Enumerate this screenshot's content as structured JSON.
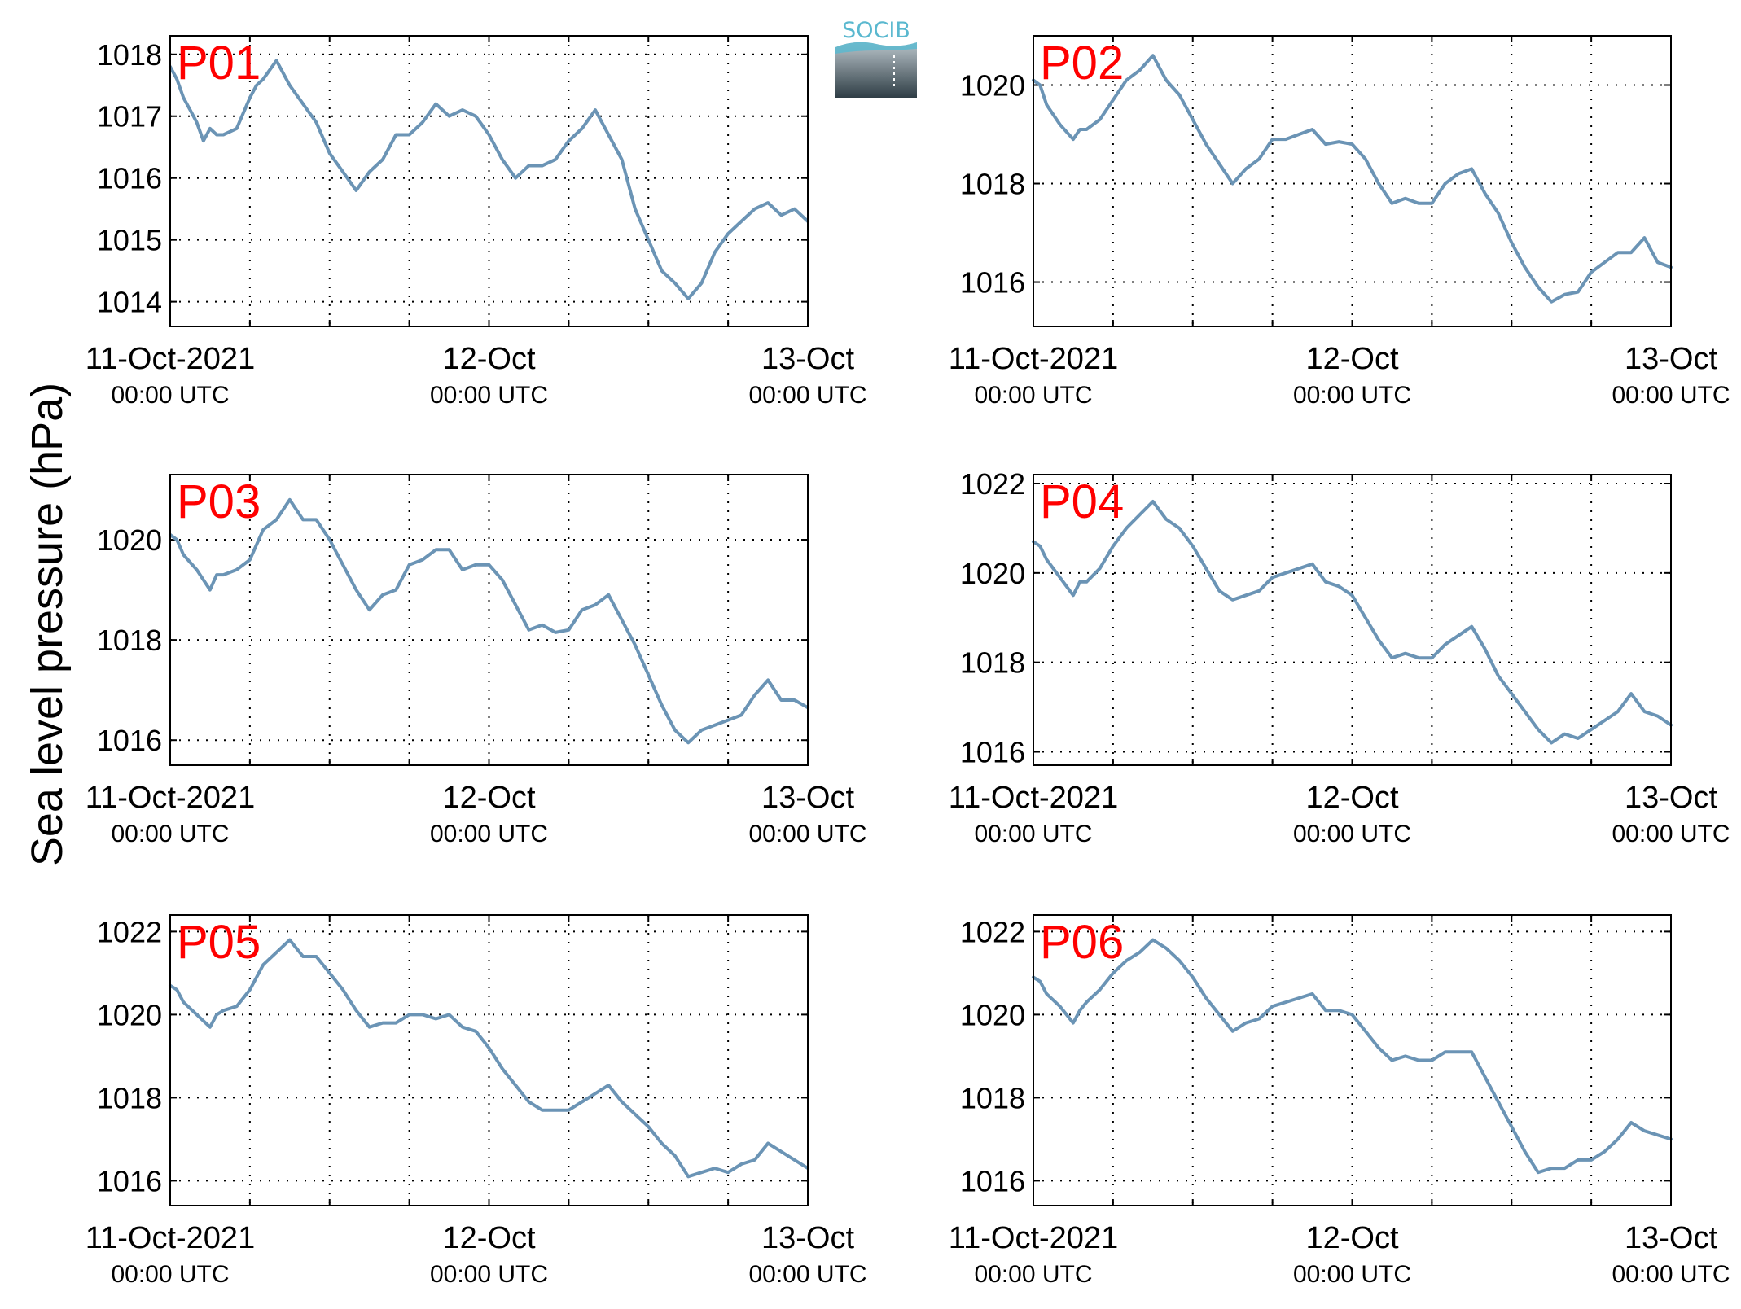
{
  "ylabel": "Sea level pressure (hPa)",
  "logo": {
    "text": "SOCIB"
  },
  "colors": {
    "line": "#6b94b5",
    "label": "#ff0000",
    "grid": "#000000",
    "logo_accent": "#5ab8cf"
  },
  "x_axis": {
    "ticks": [
      {
        "value": 0,
        "date": "11-Oct-2021",
        "time": "00:00 UTC"
      },
      {
        "value": 24,
        "date": "12-Oct",
        "time": "00:00 UTC"
      },
      {
        "value": 48,
        "date": "13-Oct",
        "time": "00:00 UTC"
      }
    ]
  },
  "chart_data": [
    {
      "type": "line",
      "panel_label": "P01",
      "xlim": [
        0,
        48
      ],
      "ylim": [
        1013.6,
        1018.3
      ],
      "yticks": [
        1014,
        1015,
        1016,
        1017,
        1018
      ],
      "x": [
        0,
        0.5,
        1,
        1.5,
        2,
        2.5,
        3,
        3.5,
        4,
        5,
        6,
        6.5,
        7,
        8,
        9,
        10,
        11,
        12,
        13,
        14,
        15,
        16,
        17,
        18,
        19,
        20,
        21,
        22,
        23,
        24,
        25,
        26,
        27,
        28,
        29,
        30,
        31,
        32,
        33,
        34,
        35,
        36,
        37,
        38,
        39,
        40,
        41,
        42,
        43,
        44,
        45,
        46,
        47,
        48
      ],
      "values": [
        1017.8,
        1017.6,
        1017.3,
        1017.1,
        1016.9,
        1016.6,
        1016.8,
        1016.7,
        1016.7,
        1016.8,
        1017.3,
        1017.5,
        1017.6,
        1017.9,
        1017.5,
        1017.2,
        1016.9,
        1016.4,
        1016.1,
        1015.8,
        1016.1,
        1016.3,
        1016.7,
        1016.7,
        1016.9,
        1017.2,
        1017.0,
        1017.1,
        1017.0,
        1016.7,
        1016.3,
        1016.0,
        1016.2,
        1016.2,
        1016.3,
        1016.6,
        1016.8,
        1017.1,
        1016.7,
        1016.3,
        1015.5,
        1015.0,
        1014.5,
        1014.3,
        1014.05,
        1014.3,
        1014.8,
        1015.1,
        1015.3,
        1015.5,
        1015.6,
        1015.4,
        1015.5,
        1015.3
      ]
    },
    {
      "type": "line",
      "panel_label": "P02",
      "xlim": [
        0,
        48
      ],
      "ylim": [
        1015.1,
        1021.0
      ],
      "yticks": [
        1016,
        1018,
        1020
      ],
      "x": [
        0,
        0.5,
        1,
        2,
        3,
        3.5,
        4,
        5,
        6,
        7,
        8,
        9,
        10,
        11,
        12,
        13,
        14,
        15,
        16,
        17,
        18,
        19,
        20,
        21,
        22,
        23,
        24,
        25,
        26,
        27,
        28,
        29,
        30,
        31,
        32,
        33,
        34,
        35,
        36,
        37,
        38,
        39,
        40,
        41,
        42,
        43,
        44,
        45,
        46,
        47,
        48
      ],
      "values": [
        1020.1,
        1020.0,
        1019.6,
        1019.2,
        1018.9,
        1019.1,
        1019.1,
        1019.3,
        1019.7,
        1020.1,
        1020.3,
        1020.6,
        1020.1,
        1019.8,
        1019.3,
        1018.8,
        1018.4,
        1018.0,
        1018.3,
        1018.5,
        1018.9,
        1018.9,
        1019.0,
        1019.1,
        1018.8,
        1018.85,
        1018.8,
        1018.5,
        1018.0,
        1017.6,
        1017.7,
        1017.6,
        1017.6,
        1018.0,
        1018.2,
        1018.3,
        1017.8,
        1017.4,
        1016.8,
        1016.3,
        1015.9,
        1015.6,
        1015.75,
        1015.8,
        1016.2,
        1016.4,
        1016.6,
        1016.6,
        1016.9,
        1016.4,
        1016.3
      ]
    },
    {
      "type": "line",
      "panel_label": "P03",
      "xlim": [
        0,
        48
      ],
      "ylim": [
        1015.5,
        1021.3
      ],
      "yticks": [
        1016,
        1018,
        1020
      ],
      "x": [
        0,
        0.5,
        1,
        2,
        3,
        3.5,
        4,
        5,
        6,
        7,
        8,
        9,
        10,
        11,
        12,
        13,
        14,
        15,
        16,
        17,
        18,
        19,
        20,
        21,
        22,
        23,
        24,
        25,
        26,
        27,
        28,
        29,
        30,
        31,
        32,
        33,
        34,
        35,
        36,
        37,
        38,
        39,
        40,
        41,
        42,
        43,
        44,
        45,
        46,
        47,
        48
      ],
      "values": [
        1020.1,
        1020.0,
        1019.7,
        1019.4,
        1019.0,
        1019.3,
        1019.3,
        1019.4,
        1019.6,
        1020.2,
        1020.4,
        1020.8,
        1020.4,
        1020.4,
        1020.0,
        1019.5,
        1019.0,
        1018.6,
        1018.9,
        1019.0,
        1019.5,
        1019.6,
        1019.8,
        1019.8,
        1019.4,
        1019.5,
        1019.5,
        1019.2,
        1018.7,
        1018.2,
        1018.3,
        1018.15,
        1018.2,
        1018.6,
        1018.7,
        1018.9,
        1018.4,
        1017.9,
        1017.3,
        1016.7,
        1016.2,
        1015.95,
        1016.2,
        1016.3,
        1016.4,
        1016.5,
        1016.9,
        1017.2,
        1016.8,
        1016.8,
        1016.65
      ]
    },
    {
      "type": "line",
      "panel_label": "P04",
      "xlim": [
        0,
        48
      ],
      "ylim": [
        1015.7,
        1022.2
      ],
      "yticks": [
        1016,
        1018,
        1020,
        1022
      ],
      "x": [
        0,
        0.5,
        1,
        2,
        3,
        3.5,
        4,
        5,
        6,
        7,
        8,
        9,
        10,
        11,
        12,
        13,
        14,
        15,
        16,
        17,
        18,
        19,
        20,
        21,
        22,
        23,
        24,
        25,
        26,
        27,
        28,
        29,
        30,
        31,
        32,
        33,
        34,
        35,
        36,
        37,
        38,
        39,
        40,
        41,
        42,
        43,
        44,
        45,
        46,
        47,
        48
      ],
      "values": [
        1020.7,
        1020.6,
        1020.3,
        1019.9,
        1019.5,
        1019.8,
        1019.8,
        1020.1,
        1020.6,
        1021.0,
        1021.3,
        1021.6,
        1021.2,
        1021.0,
        1020.6,
        1020.1,
        1019.6,
        1019.4,
        1019.5,
        1019.6,
        1019.9,
        1020.0,
        1020.1,
        1020.2,
        1019.8,
        1019.7,
        1019.5,
        1019.0,
        1018.5,
        1018.1,
        1018.2,
        1018.1,
        1018.1,
        1018.4,
        1018.6,
        1018.8,
        1018.3,
        1017.7,
        1017.3,
        1016.9,
        1016.5,
        1016.2,
        1016.4,
        1016.3,
        1016.5,
        1016.7,
        1016.9,
        1017.3,
        1016.9,
        1016.8,
        1016.6
      ]
    },
    {
      "type": "line",
      "panel_label": "P05",
      "xlim": [
        0,
        48
      ],
      "ylim": [
        1015.4,
        1022.4
      ],
      "yticks": [
        1016,
        1018,
        1020,
        1022
      ],
      "x": [
        0,
        0.5,
        1,
        2,
        3,
        3.5,
        4,
        5,
        6,
        7,
        8,
        9,
        10,
        11,
        12,
        13,
        14,
        15,
        16,
        17,
        18,
        19,
        20,
        21,
        22,
        23,
        24,
        25,
        26,
        27,
        28,
        29,
        30,
        31,
        32,
        33,
        34,
        35,
        36,
        37,
        38,
        39,
        40,
        41,
        42,
        43,
        44,
        45,
        46,
        47,
        48
      ],
      "values": [
        1020.7,
        1020.6,
        1020.3,
        1020.0,
        1019.7,
        1020.0,
        1020.1,
        1020.2,
        1020.6,
        1021.2,
        1021.5,
        1021.8,
        1021.4,
        1021.4,
        1021.0,
        1020.6,
        1020.1,
        1019.7,
        1019.8,
        1019.8,
        1020.0,
        1020.0,
        1019.9,
        1020.0,
        1019.7,
        1019.6,
        1019.2,
        1018.7,
        1018.3,
        1017.9,
        1017.7,
        1017.7,
        1017.7,
        1017.9,
        1018.1,
        1018.3,
        1017.9,
        1017.6,
        1017.3,
        1016.9,
        1016.6,
        1016.1,
        1016.2,
        1016.3,
        1016.2,
        1016.4,
        1016.5,
        1016.9,
        1016.7,
        1016.5,
        1016.3
      ]
    },
    {
      "type": "line",
      "panel_label": "P06",
      "xlim": [
        0,
        48
      ],
      "ylim": [
        1015.4,
        1022.4
      ],
      "yticks": [
        1016,
        1018,
        1020,
        1022
      ],
      "x": [
        0,
        0.5,
        1,
        2,
        3,
        3.5,
        4,
        5,
        6,
        7,
        8,
        9,
        10,
        11,
        12,
        13,
        14,
        15,
        16,
        17,
        18,
        19,
        20,
        21,
        22,
        23,
        24,
        25,
        26,
        27,
        28,
        29,
        30,
        31,
        32,
        33,
        34,
        35,
        36,
        37,
        38,
        39,
        40,
        41,
        42,
        43,
        44,
        45,
        46,
        47,
        48
      ],
      "values": [
        1020.9,
        1020.8,
        1020.5,
        1020.2,
        1019.8,
        1020.1,
        1020.3,
        1020.6,
        1021.0,
        1021.3,
        1021.5,
        1021.8,
        1021.6,
        1021.3,
        1020.9,
        1020.4,
        1020.0,
        1019.6,
        1019.8,
        1019.9,
        1020.2,
        1020.3,
        1020.4,
        1020.5,
        1020.1,
        1020.1,
        1020.0,
        1019.6,
        1019.2,
        1018.9,
        1019.0,
        1018.9,
        1018.9,
        1019.1,
        1019.1,
        1019.1,
        1018.5,
        1017.9,
        1017.3,
        1016.7,
        1016.2,
        1016.3,
        1016.3,
        1016.5,
        1016.5,
        1016.7,
        1017.0,
        1017.4,
        1017.2,
        1017.1,
        1017.0
      ]
    }
  ]
}
